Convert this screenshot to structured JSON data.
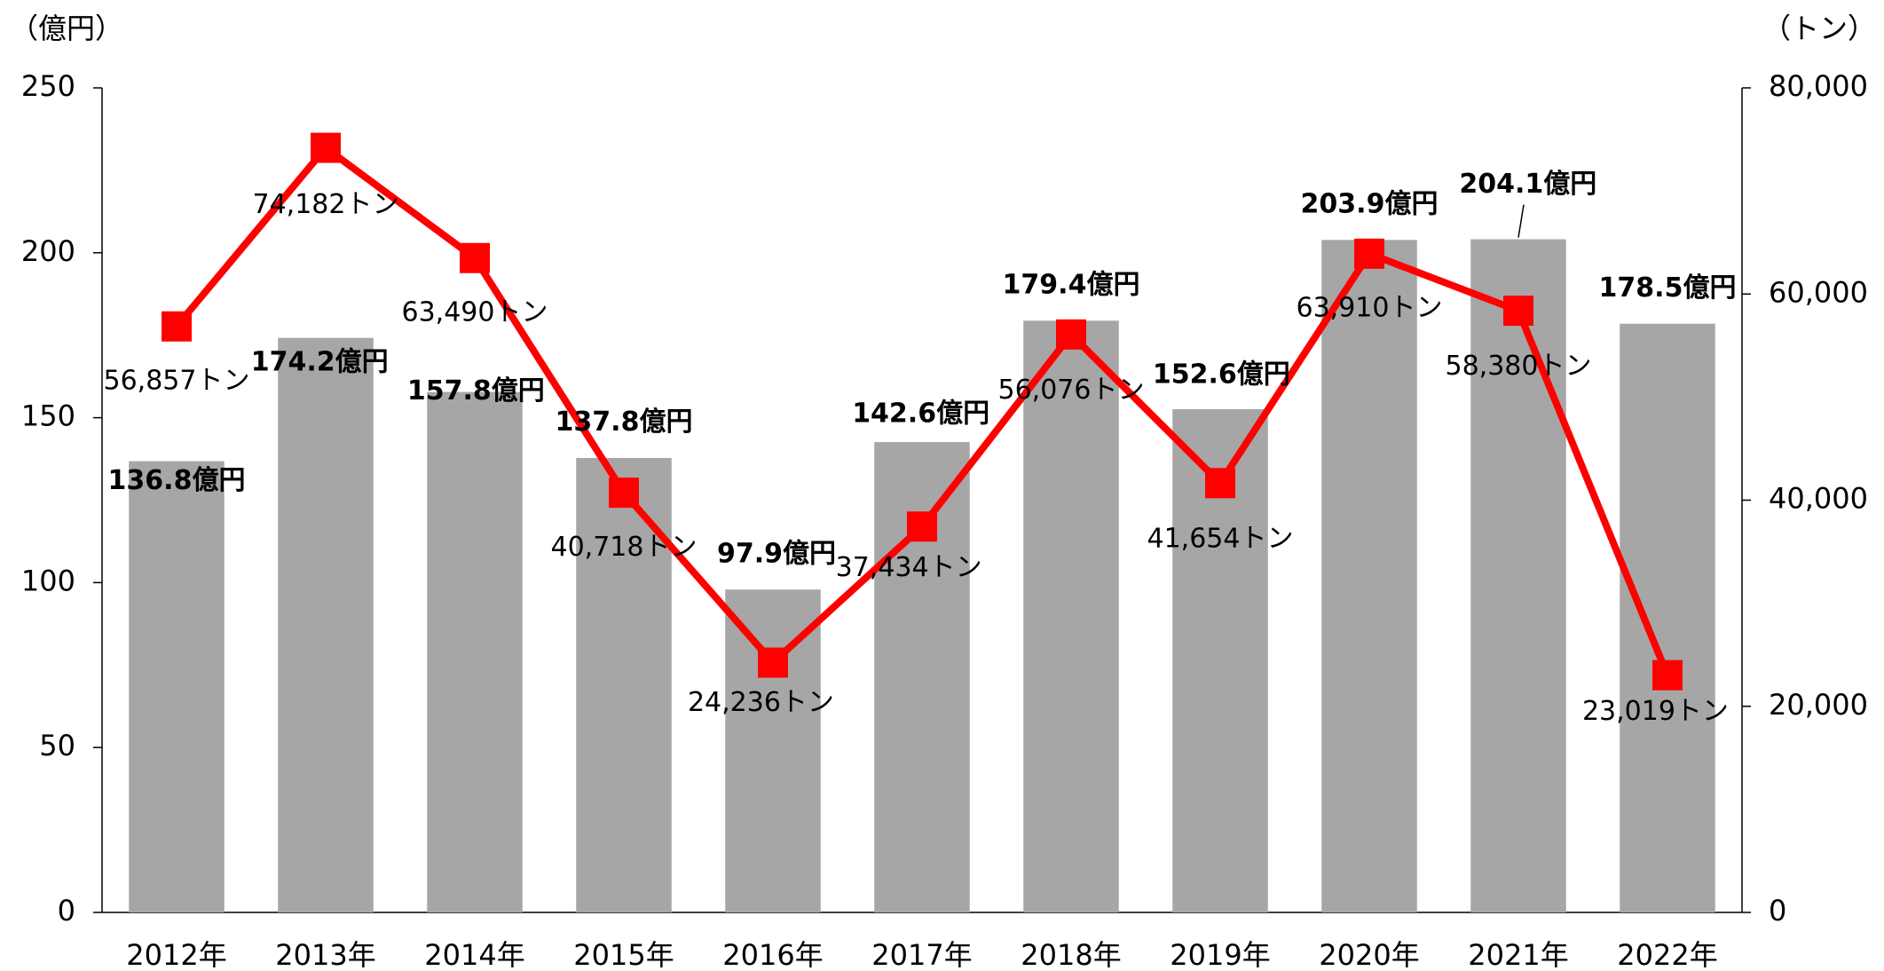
{
  "chart_data": {
    "type": "bar",
    "y_label": "（億円）",
    "y2_label": "（トン）",
    "categories": [
      "2012年",
      "2013年",
      "2014年",
      "2015年",
      "2016年",
      "2017年",
      "2018年",
      "2019年",
      "2020年",
      "2021年",
      "2022年"
    ],
    "series": [
      {
        "name": "億円",
        "type": "bar",
        "color": "#a6a6a6",
        "values": [
          136.8,
          174.2,
          157.8,
          137.8,
          97.9,
          142.6,
          179.4,
          152.6,
          203.9,
          204.1,
          178.5
        ],
        "value_labels": [
          "136.8億円",
          "174.2億円",
          "157.8億円",
          "137.8億円",
          "97.9億円",
          "142.6億円",
          "179.4億円",
          "152.6億円",
          "203.9億円",
          "204.1億円",
          "178.5億円"
        ]
      },
      {
        "name": "トン",
        "type": "line",
        "axis": "y2",
        "color": "#ff0000",
        "values": [
          56857,
          74182,
          63490,
          40718,
          24236,
          37434,
          56076,
          41654,
          63910,
          58380,
          23019
        ],
        "value_labels": [
          "56,857トン",
          "74,182トン",
          "63,490トン",
          "40,718トン",
          "24,236トン",
          "37,434トン",
          "56,076トン",
          "41,654トン",
          "63,910トン",
          "58,380トン",
          "23,019トン"
        ]
      }
    ],
    "ylim": [
      0,
      250
    ],
    "yticks": [
      0,
      50,
      100,
      150,
      200,
      250
    ],
    "y2lim": [
      0,
      80000
    ],
    "y2ticks": [
      0,
      {
        "value": 20000,
        "label": "20,000"
      },
      {
        "value": 40000,
        "label": "40,000"
      },
      {
        "value": 60000,
        "label": "60,000"
      },
      {
        "value": 80000,
        "label": "80,000"
      }
    ]
  }
}
